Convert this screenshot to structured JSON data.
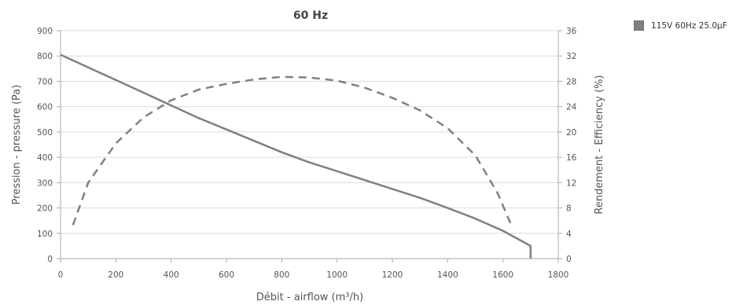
{
  "chart_data": {
    "type": "line",
    "title": "60 Hz",
    "xlabel": "Débit - airflow (m³/h)",
    "ylabel": "Pression - pressure (Pa)",
    "y2label": "Rendement - Efficiency (%)",
    "xlim": [
      0,
      1800
    ],
    "ylim": [
      0,
      900
    ],
    "y2lim": [
      0,
      36
    ],
    "xticks": [
      "0",
      "200",
      "400",
      "600",
      "800",
      "1000",
      "1200",
      "1400",
      "1600",
      "1800"
    ],
    "yticks": [
      "0",
      "100",
      "200",
      "300",
      "400",
      "500",
      "600",
      "700",
      "800",
      "900"
    ],
    "y2ticks": [
      "0",
      "4",
      "8",
      "12",
      "16",
      "20",
      "24",
      "28",
      "32",
      "36"
    ],
    "grid": true,
    "legend_position": "top-right",
    "legend": [
      "115V 60Hz 25.0µF"
    ],
    "series": [
      {
        "name": "115V 60Hz 25.0µF",
        "axis": "left",
        "style": "solid",
        "color": "#808080",
        "points": [
          [
            0,
            805
          ],
          [
            100,
            755
          ],
          [
            200,
            705
          ],
          [
            300,
            655
          ],
          [
            400,
            605
          ],
          [
            500,
            555
          ],
          [
            600,
            510
          ],
          [
            700,
            465
          ],
          [
            800,
            420
          ],
          [
            900,
            380
          ],
          [
            1000,
            345
          ],
          [
            1100,
            310
          ],
          [
            1200,
            275
          ],
          [
            1300,
            240
          ],
          [
            1400,
            200
          ],
          [
            1500,
            158
          ],
          [
            1600,
            110
          ],
          [
            1700,
            50
          ],
          [
            1700,
            0
          ]
        ]
      },
      {
        "name": "115V 60Hz 25.0µF",
        "axis": "right",
        "style": "dashed",
        "color": "#808080",
        "points": [
          [
            45,
            5.3
          ],
          [
            100,
            12
          ],
          [
            200,
            18.2
          ],
          [
            300,
            22.3
          ],
          [
            400,
            25
          ],
          [
            500,
            26.7
          ],
          [
            600,
            27.6
          ],
          [
            700,
            28.3
          ],
          [
            800,
            28.7
          ],
          [
            900,
            28.6
          ],
          [
            1000,
            28.1
          ],
          [
            1100,
            27
          ],
          [
            1200,
            25.4
          ],
          [
            1300,
            23.4
          ],
          [
            1400,
            20.6
          ],
          [
            1500,
            16.3
          ],
          [
            1580,
            10.4
          ],
          [
            1630,
            5.3
          ]
        ]
      }
    ]
  }
}
